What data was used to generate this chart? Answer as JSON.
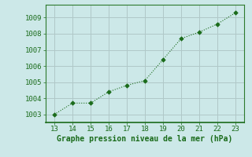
{
  "x": [
    13,
    14,
    15,
    16,
    17,
    18,
    19,
    20,
    21,
    22,
    23
  ],
  "y": [
    1003.0,
    1003.7,
    1003.7,
    1004.4,
    1004.8,
    1005.1,
    1006.4,
    1007.7,
    1008.1,
    1008.6,
    1009.3
  ],
  "xlim": [
    12.5,
    23.5
  ],
  "ylim": [
    1002.5,
    1009.8
  ],
  "xticks": [
    13,
    14,
    15,
    16,
    17,
    18,
    19,
    20,
    21,
    22,
    23
  ],
  "yticks": [
    1003,
    1004,
    1005,
    1006,
    1007,
    1008,
    1009
  ],
  "xlabel": "Graphe pression niveau de la mer (hPa)",
  "line_color": "#1a6b1a",
  "marker_color": "#1a6b1a",
  "bg_color": "#cce8e8",
  "grid_color": "#b0c8c8",
  "text_color": "#1a6b1a",
  "tick_color": "#1a6b1a",
  "label_fontsize": 7.0,
  "tick_fontsize": 6.5
}
